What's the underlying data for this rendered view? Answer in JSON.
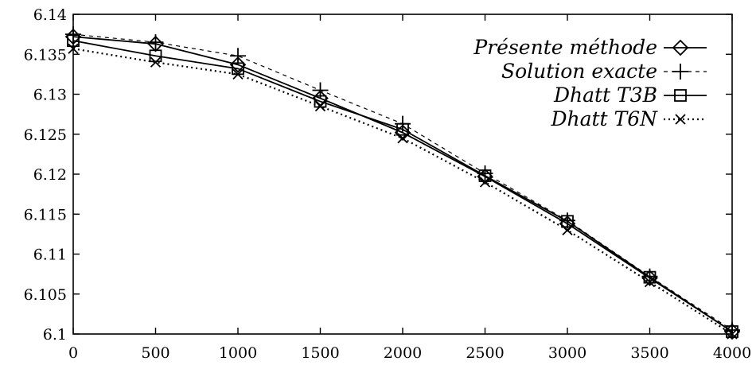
{
  "chart_data": {
    "type": "line",
    "x": [
      0,
      500,
      1000,
      1500,
      2000,
      2500,
      3000,
      3500,
      4000
    ],
    "xlim": [
      0,
      4000
    ],
    "ylim": [
      6.1,
      6.14
    ],
    "x_ticks": [
      "0",
      "500",
      "1000",
      "1500",
      "2000",
      "2500",
      "3000",
      "3500",
      "4000"
    ],
    "y_ticks": [
      "6.1",
      "6.105",
      "6.11",
      "6.115",
      "6.12",
      "6.125",
      "6.13",
      "6.135",
      "6.14"
    ],
    "grid": false,
    "legend_position": "top-right",
    "series": [
      {
        "name": "Présente méthode",
        "marker": "diamond",
        "line": "solid",
        "values": [
          6.1372,
          6.1363,
          6.1337,
          6.1295,
          6.1252,
          6.1197,
          6.1138,
          6.107,
          6.1003
        ]
      },
      {
        "name": "Solution exacte",
        "marker": "plus",
        "line": "dashed",
        "values": [
          6.1375,
          6.1365,
          6.1348,
          6.1305,
          6.1263,
          6.1201,
          6.1142,
          6.1072,
          6.1005
        ]
      },
      {
        "name": "Dhatt T3B",
        "marker": "square",
        "line": "solid",
        "values": [
          6.1367,
          6.1348,
          6.1332,
          6.1291,
          6.1256,
          6.1198,
          6.1141,
          6.1071,
          6.1003
        ]
      },
      {
        "name": "Dhatt T6N",
        "marker": "cross",
        "line": "dotted",
        "values": [
          6.1357,
          6.134,
          6.1325,
          6.1285,
          6.1245,
          6.119,
          6.113,
          6.1065,
          6.1
        ]
      }
    ]
  }
}
